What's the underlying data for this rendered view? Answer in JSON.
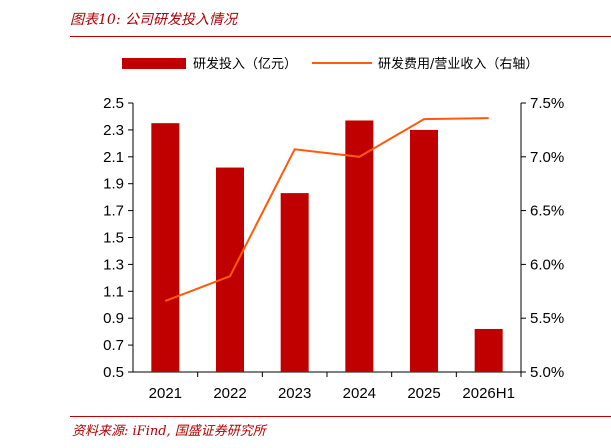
{
  "header": {
    "caption": "图表10:  公司研发投入情况"
  },
  "footer": {
    "source": "资料来源:  iFind,  国盛证券研究所"
  },
  "colors": {
    "bar": "#c00000",
    "line": "#ff5b0a",
    "caption": "#b00000"
  },
  "chart_data": {
    "type": "bar",
    "categories": [
      "2021",
      "2022",
      "2023",
      "2024",
      "2025",
      "2026H1"
    ],
    "series": [
      {
        "name": "研发投入（亿元）",
        "type": "bar",
        "axis": "left",
        "values": [
          2.35,
          2.02,
          1.83,
          2.37,
          2.3,
          0.82
        ]
      },
      {
        "name": "研发费用/营业收入（右轴）",
        "type": "line",
        "axis": "right",
        "values": [
          5.66,
          5.89,
          7.07,
          7.0,
          7.35,
          7.36
        ]
      }
    ],
    "y_left": {
      "lim": [
        0.5,
        2.5
      ],
      "ticks": [
        "0.5",
        "0.7",
        "0.9",
        "1.1",
        "1.3",
        "1.5",
        "1.7",
        "1.9",
        "2.1",
        "2.3",
        "2.5"
      ]
    },
    "y_right": {
      "lim": [
        5.0,
        7.5
      ],
      "ticks": [
        "5.0%",
        "5.5%",
        "6.0%",
        "6.5%",
        "7.0%",
        "7.5%"
      ]
    },
    "grid": false,
    "legend_position": "top"
  }
}
